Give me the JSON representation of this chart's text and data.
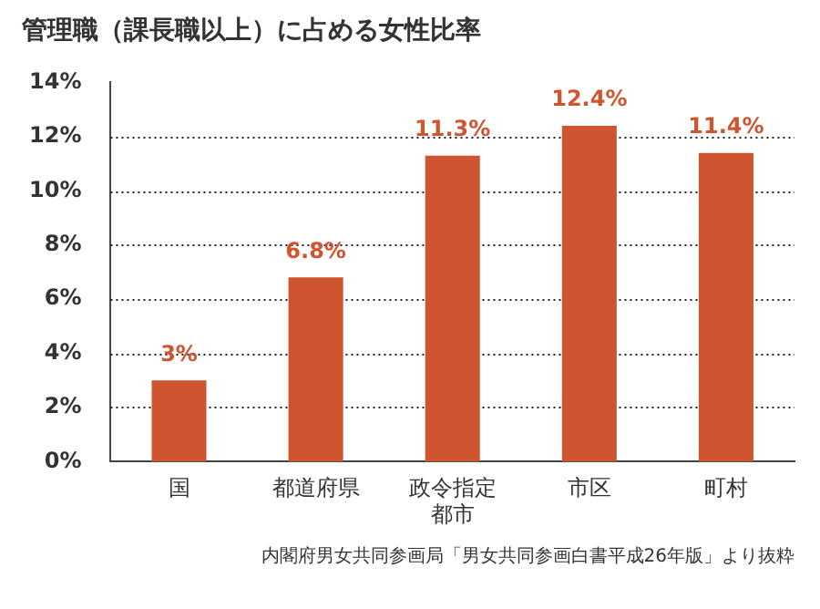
{
  "chart_data": {
    "type": "bar",
    "title": "管理職（課長職以上）に占める女性比率",
    "categories": [
      "国",
      "都道府県",
      "政令指定都市",
      "市区",
      "町村"
    ],
    "values": [
      3,
      6.8,
      11.3,
      12.4,
      11.4
    ],
    "value_labels": [
      "3%",
      "6.8%",
      "11.3%",
      "12.4%",
      "11.4%"
    ],
    "color": "#cf5530",
    "ylim": [
      0,
      14
    ],
    "yticks": [
      {
        "value": 0,
        "label": "0%"
      },
      {
        "value": 2,
        "label": "2%"
      },
      {
        "value": 4,
        "label": "4%"
      },
      {
        "value": 6,
        "label": "6%"
      },
      {
        "value": 8,
        "label": "8%"
      },
      {
        "value": 10,
        "label": "10%"
      },
      {
        "value": 12,
        "label": "12%"
      },
      {
        "value": 14,
        "label": "14%"
      }
    ],
    "grid": "y",
    "legend": false,
    "annotations": [
      "内閣府男女共同参画局「男女共同参画白書平成26年版」より抜粋"
    ]
  }
}
